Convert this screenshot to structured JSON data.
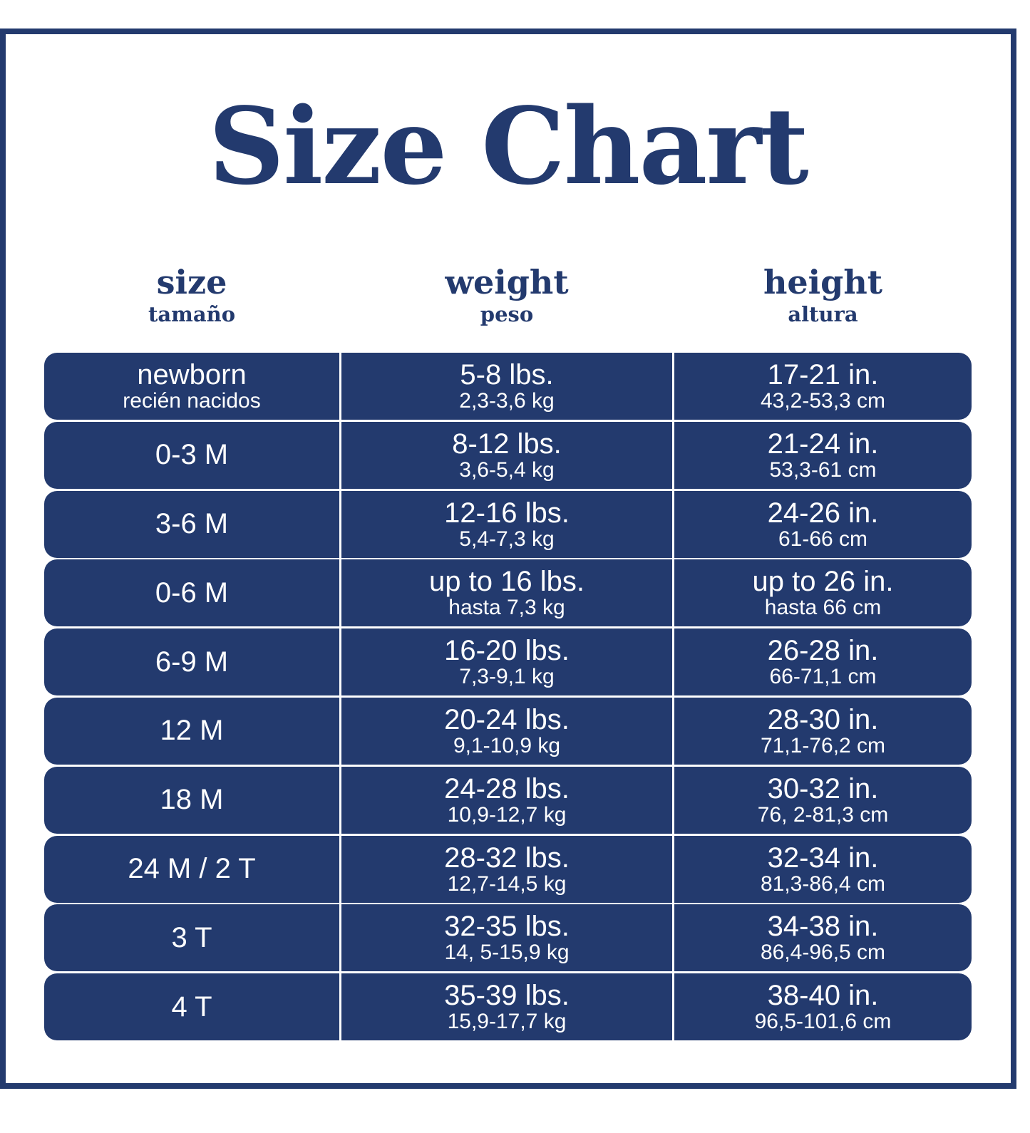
{
  "title": "Size Chart",
  "colors": {
    "brand": "#233a6e",
    "background": "#ffffff",
    "text_on_brand": "#ffffff"
  },
  "headers": [
    {
      "en": "size",
      "es": "tamaño"
    },
    {
      "en": "weight",
      "es": "peso"
    },
    {
      "en": "height",
      "es": "altura"
    }
  ],
  "rows": [
    {
      "size": "newborn",
      "size_es": "recién nacidos",
      "weight": "5-8 lbs.",
      "weight_kg": "2,3-3,6 kg",
      "height": "17-21 in.",
      "height_cm": "43,2-53,3 cm"
    },
    {
      "size": "0-3 M",
      "weight": "8-12 lbs.",
      "weight_kg": "3,6-5,4 kg",
      "height": "21-24 in.",
      "height_cm": "53,3-61 cm"
    },
    {
      "size": "3-6 M",
      "weight": "12-16 lbs.",
      "weight_kg": "5,4-7,3 kg",
      "height": "24-26 in.",
      "height_cm": "61-66 cm"
    },
    {
      "size": "0-6 M",
      "weight": "up to 16 lbs.",
      "weight_kg": "hasta 7,3 kg",
      "height": "up to 26 in.",
      "height_cm": "hasta 66 cm"
    },
    {
      "size": "6-9 M",
      "weight": "16-20 lbs.",
      "weight_kg": "7,3-9,1 kg",
      "height": "26-28 in.",
      "height_cm": "66-71,1 cm"
    },
    {
      "size": "12 M",
      "weight": "20-24 lbs.",
      "weight_kg": "9,1-10,9 kg",
      "height": "28-30 in.",
      "height_cm": "71,1-76,2 cm"
    },
    {
      "size": "18 M",
      "weight": "24-28 lbs.",
      "weight_kg": "10,9-12,7 kg",
      "height": "30-32 in.",
      "height_cm": "76, 2-81,3 cm"
    },
    {
      "size": "24 M / 2 T",
      "weight": "28-32 lbs.",
      "weight_kg": "12,7-14,5 kg",
      "height": "32-34 in.",
      "height_cm": "81,3-86,4 cm"
    },
    {
      "size": "3 T",
      "weight": "32-35 lbs.",
      "weight_kg": "14, 5-15,9 kg",
      "height": "34-38 in.",
      "height_cm": "86,4-96,5 cm"
    },
    {
      "size": "4 T",
      "weight": "35-39 lbs.",
      "weight_kg": "15,9-17,7 kg",
      "height": "38-40 in.",
      "height_cm": "96,5-101,6 cm"
    }
  ]
}
